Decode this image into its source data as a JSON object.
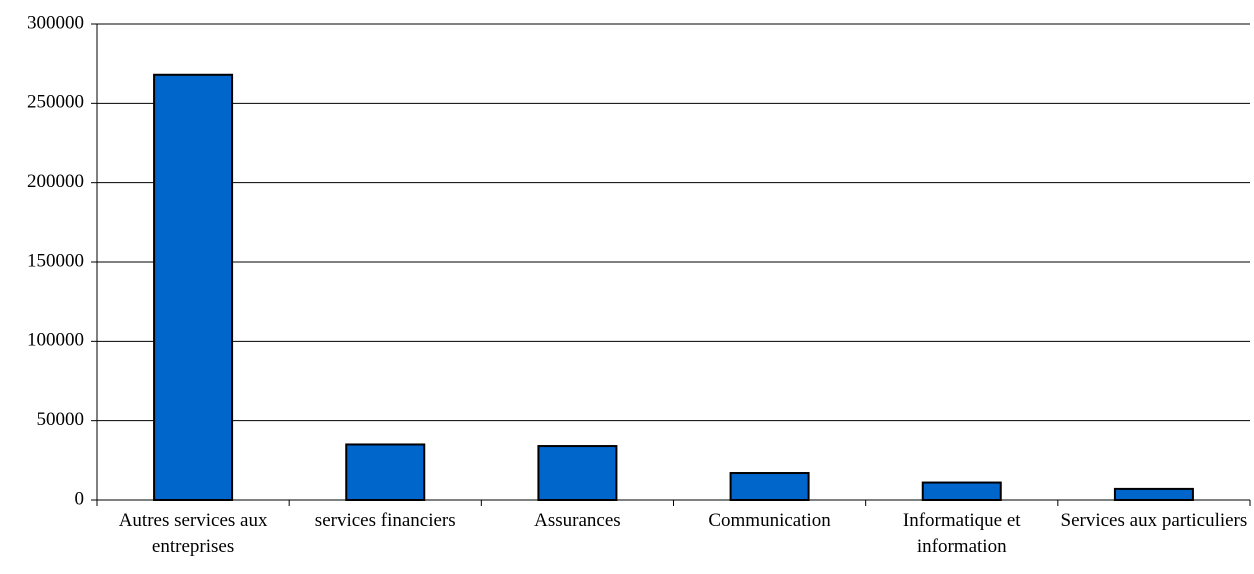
{
  "chart_data": {
    "type": "bar",
    "categories": [
      "Autres services aux entreprises",
      "services financiers",
      "Assurances",
      "Communication",
      "Informatique et information",
      "Services aux particuliers"
    ],
    "values": [
      268000,
      35000,
      34000,
      17000,
      11000,
      7000
    ],
    "color": "#0066cc",
    "ylim": [
      0,
      300000
    ],
    "yticks": [
      0,
      50000,
      100000,
      150000,
      200000,
      250000,
      300000
    ],
    "grid": true
  }
}
